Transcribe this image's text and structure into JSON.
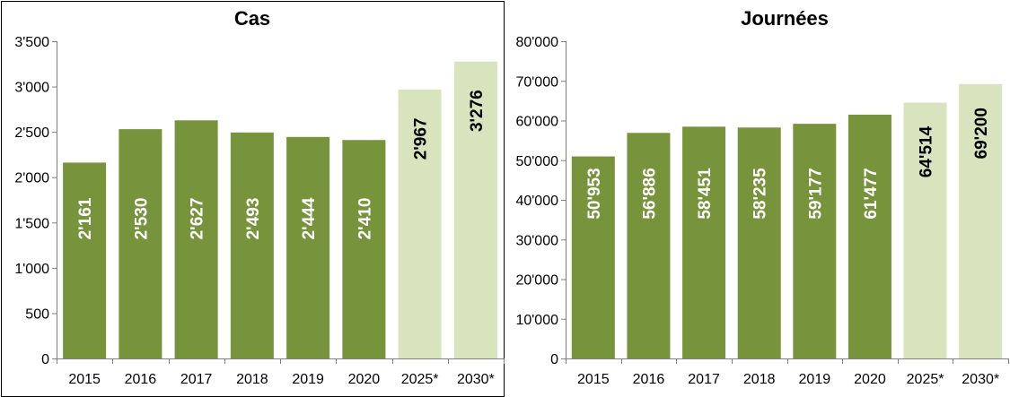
{
  "colors": {
    "actual": "#77933c",
    "projected": "#d7e4bd",
    "label_on_actual": "#ffffff",
    "label_on_projected": "#000000",
    "axis": "#7f7f7f"
  },
  "chart_data": [
    {
      "type": "bar",
      "title": "Cas",
      "categories": [
        "2015",
        "2016",
        "2017",
        "2018",
        "2019",
        "2020",
        "2025*",
        "2030*"
      ],
      "values": [
        2161,
        2530,
        2627,
        2493,
        2444,
        2410,
        2967,
        3276
      ],
      "value_labels": [
        "2'161",
        "2'530",
        "2'627",
        "2'493",
        "2'444",
        "2'410",
        "2'967",
        "3'276"
      ],
      "projected": [
        false,
        false,
        false,
        false,
        false,
        false,
        true,
        true
      ],
      "ylim": [
        0,
        3500
      ],
      "yticks": [
        0,
        500,
        1000,
        1500,
        2000,
        2500,
        3000,
        3500
      ],
      "ytick_labels": [
        "0",
        "500",
        "1'000",
        "1'500",
        "2'000",
        "2'500",
        "3'000",
        "3'500"
      ],
      "grid": false,
      "legend": "none"
    },
    {
      "type": "bar",
      "title": "Journées",
      "categories": [
        "2015",
        "2016",
        "2017",
        "2018",
        "2019",
        "2020",
        "2025*",
        "2030*"
      ],
      "values": [
        50953,
        56886,
        58451,
        58235,
        59177,
        61477,
        64514,
        69200
      ],
      "value_labels": [
        "50'953",
        "56'886",
        "58'451",
        "58'235",
        "59'177",
        "61'477",
        "64'514",
        "69'200"
      ],
      "projected": [
        false,
        false,
        false,
        false,
        false,
        false,
        true,
        true
      ],
      "ylim": [
        0,
        80000
      ],
      "yticks": [
        0,
        10000,
        20000,
        30000,
        40000,
        50000,
        60000,
        70000,
        80000
      ],
      "ytick_labels": [
        "0",
        "10'000",
        "20'000",
        "30'000",
        "40'000",
        "50'000",
        "60'000",
        "70'000",
        "80'000"
      ],
      "grid": false,
      "legend": "none"
    }
  ]
}
